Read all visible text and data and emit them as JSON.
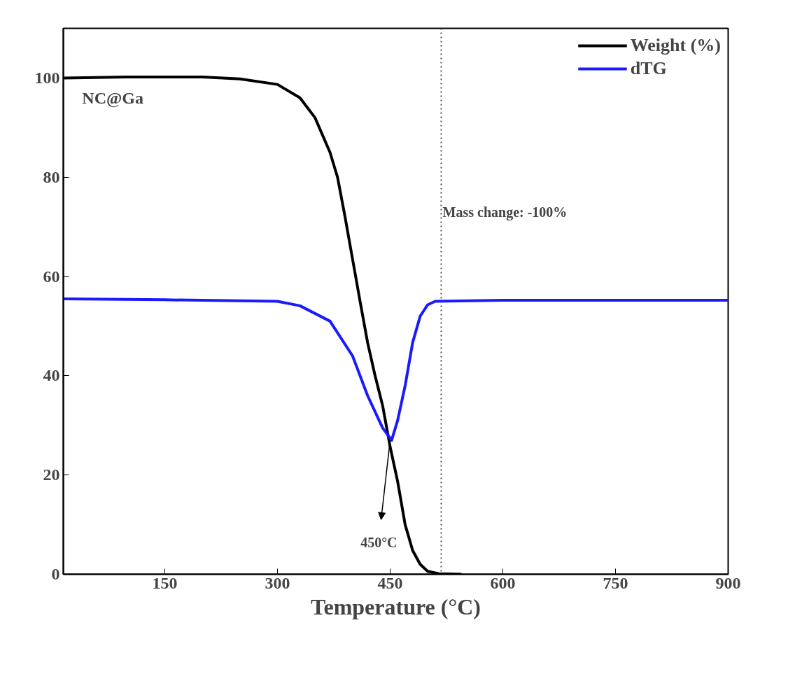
{
  "chart_data": {
    "type": "line",
    "xlabel": "Temperature (°C)",
    "xlim": [
      15,
      900
    ],
    "xticks": [
      150,
      300,
      450,
      600,
      750,
      900
    ],
    "ylim": [
      0,
      110
    ],
    "yticks": [
      0,
      20,
      40,
      60,
      80,
      100
    ],
    "tick_labels": "xy",
    "grid": false,
    "legend": "top right",
    "line_style": "solid",
    "series": [
      {
        "name": "Weight (%)",
        "color": "#000000",
        "x": [
          15,
          100,
          200,
          250,
          300,
          330,
          350,
          370,
          380,
          390,
          400,
          410,
          420,
          430,
          440,
          450,
          460,
          470,
          480,
          490,
          500,
          515,
          545
        ],
        "values": [
          100,
          100.2,
          100.2,
          99.8,
          98.7,
          96,
          92,
          85,
          80,
          72,
          63.5,
          55,
          46.7,
          40,
          34,
          25.7,
          18.7,
          10,
          4.8,
          2,
          0.6,
          0.1,
          0
        ]
      },
      {
        "name": "dTG",
        "color": "#1a1aff",
        "x": [
          15,
          150,
          300,
          330,
          370,
          400,
          420,
          440,
          452,
          460,
          470,
          480,
          490,
          500,
          510,
          600,
          750,
          900
        ],
        "values": [
          55.5,
          55.3,
          55,
          54.1,
          51,
          44,
          36,
          29.5,
          27,
          31,
          38,
          46.7,
          52,
          54.3,
          55,
          55.2,
          55.2,
          55.2
        ]
      }
    ],
    "ref_lines": [
      {
        "axis": "x",
        "value": 518,
        "label": null,
        "color": "#555555",
        "line_style": "dotted"
      }
    ],
    "annotations": [
      "NC@Ga",
      "Mass change: -100%",
      {
        "text": "450°C",
        "x": 450,
        "y": 27
      }
    ]
  }
}
